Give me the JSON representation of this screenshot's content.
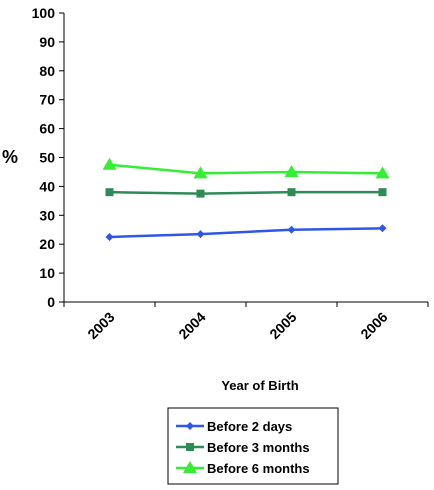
{
  "chart_data": {
    "type": "line",
    "title": "",
    "xlabel": "Year of Birth",
    "ylabel": "%",
    "categories": [
      "2003",
      "2004",
      "2005",
      "2006"
    ],
    "ylim": [
      0,
      100
    ],
    "yticks": [
      0,
      10,
      20,
      30,
      40,
      50,
      60,
      70,
      80,
      90,
      100
    ],
    "grid": false,
    "legend_position": "bottom",
    "series": [
      {
        "name": "Before 2 days",
        "values": [
          22.5,
          23.5,
          25,
          25.5
        ],
        "color": "#2f56e6",
        "marker": "diamond"
      },
      {
        "name": "Before 3 months",
        "values": [
          38,
          37.5,
          38,
          38
        ],
        "color": "#2e8b57",
        "marker": "square"
      },
      {
        "name": "Before 6 months",
        "values": [
          47.5,
          44.5,
          45,
          44.5
        ],
        "color": "#33ee33",
        "marker": "triangle"
      }
    ]
  }
}
